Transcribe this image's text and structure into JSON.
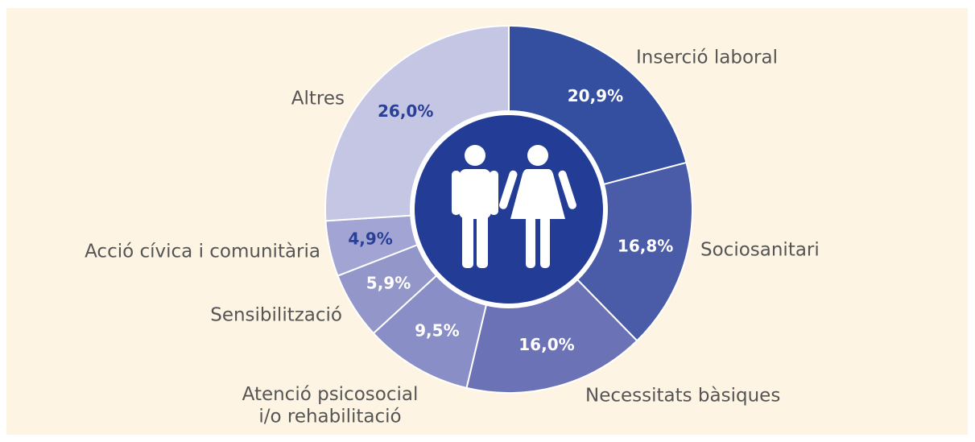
{
  "chart_data": {
    "type": "donut",
    "categories": [
      "Inserció laboral",
      "Sociosanitari",
      "Necessitats bàsiques",
      "Atenció psicosocial\ni/o rehabilitació",
      "Sensibilització",
      "Acció cívica i comunitària",
      "Altres"
    ],
    "values": [
      20.9,
      16.8,
      16.0,
      9.5,
      5.9,
      4.9,
      26.0
    ],
    "value_labels": [
      "20,9%",
      "16,8%",
      "16,0%",
      "9,5%",
      "5,9%",
      "4,9%",
      "26,0%"
    ],
    "colors": [
      "#344ea0",
      "#4a5ba8",
      "#6b72b6",
      "#8a8ec6",
      "#9296c9",
      "#a2a5d3",
      "#c5c6e3"
    ],
    "value_label_colors": [
      "#ffffff",
      "#ffffff",
      "#ffffff",
      "#ffffff",
      "#ffffff",
      "#2a3f96",
      "#2a3f96"
    ]
  }
}
